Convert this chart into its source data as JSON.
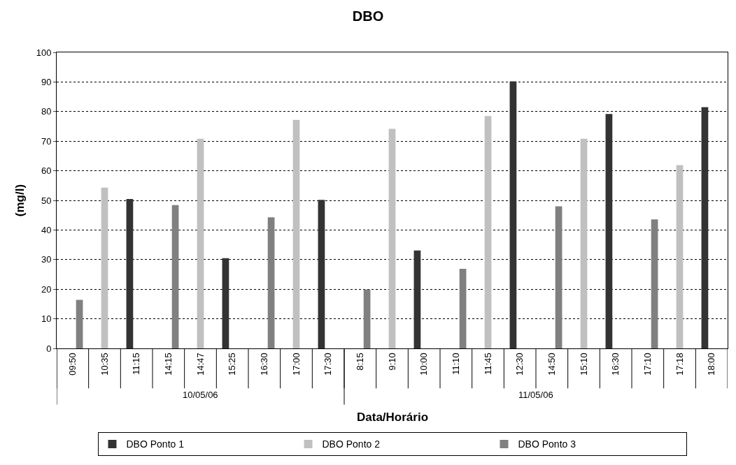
{
  "chart_data": {
    "type": "bar",
    "title": "DBO",
    "xlabel": "Data/Horário",
    "ylabel": "(mg/l)",
    "categories": [
      "09:50",
      "10:35",
      "11:15",
      "14:15",
      "14:47",
      "15:25",
      "16:30",
      "17:00",
      "17:30",
      "8:15",
      "9:10",
      "10:00",
      "11:10",
      "11:45",
      "12:30",
      "14:50",
      "15:10",
      "16:30",
      "17:10",
      "17:18",
      "18:00"
    ],
    "series": [
      {
        "name": "DBO Ponto 1",
        "color": "#333333",
        "values": [
          null,
          null,
          50.5,
          null,
          null,
          30.5,
          null,
          null,
          50.2,
          null,
          null,
          33.1,
          null,
          null,
          90.2,
          null,
          null,
          79.2,
          null,
          null,
          81.5
        ]
      },
      {
        "name": "DBO Ponto 2",
        "color": "#c0c0c0",
        "values": [
          null,
          54.3,
          null,
          null,
          70.8,
          null,
          null,
          77.2,
          null,
          null,
          74.2,
          null,
          null,
          78.5,
          null,
          null,
          70.8,
          null,
          null,
          61.9,
          null
        ]
      },
      {
        "name": "DBO Ponto 3",
        "color": "#808080",
        "values": [
          16.4,
          null,
          null,
          48.4,
          null,
          null,
          44.3,
          null,
          null,
          19.9,
          null,
          null,
          26.9,
          null,
          null,
          48,
          null,
          null,
          43.6,
          null,
          null
        ]
      }
    ],
    "annotations": [
      "10/05/06",
      "11/05/06"
    ],
    "ylim": [
      0,
      100
    ],
    "yticks": [
      0,
      10,
      20,
      30,
      40,
      50,
      60,
      70,
      80,
      90,
      100
    ],
    "grid": "y",
    "legend": "bottom"
  }
}
